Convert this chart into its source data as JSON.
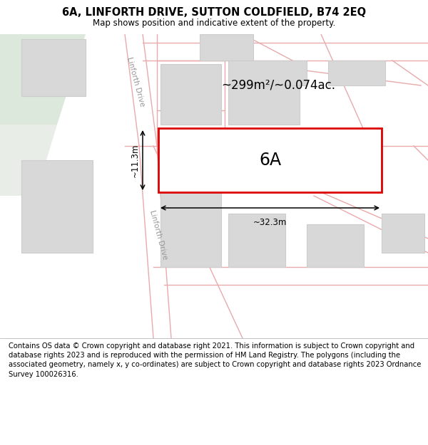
{
  "title": "6A, LINFORTH DRIVE, SUTTON COLDFIELD, B74 2EQ",
  "subtitle": "Map shows position and indicative extent of the property.",
  "footer": "Contains OS data © Crown copyright and database right 2021. This information is subject to Crown copyright and database rights 2023 and is reproduced with the permission of HM Land Registry. The polygons (including the associated geometry, namely x, y co-ordinates) are subject to Crown copyright and database rights 2023 Ordnance Survey 100026316.",
  "area_label": "~299m²/~0.074ac.",
  "width_label": "~32.3m",
  "height_label": "~11.3m",
  "plot_label": "6A",
  "road_label": "Linforth Drive",
  "map_bg": "#ffffff",
  "map_outer_bg_left": "#dce8dc",
  "road_line_color": "#e8aaaa",
  "building_fill": "#d8d8d8",
  "building_edge": "#cccccc",
  "property_fill": "#ffffff",
  "property_edge": "#dd0000",
  "title_fontsize": 10.5,
  "subtitle_fontsize": 8.5,
  "footer_fontsize": 7.2,
  "area_fontsize": 12,
  "plot_label_fontsize": 17,
  "dim_fontsize": 8.5,
  "road_label_fontsize": 7.5
}
